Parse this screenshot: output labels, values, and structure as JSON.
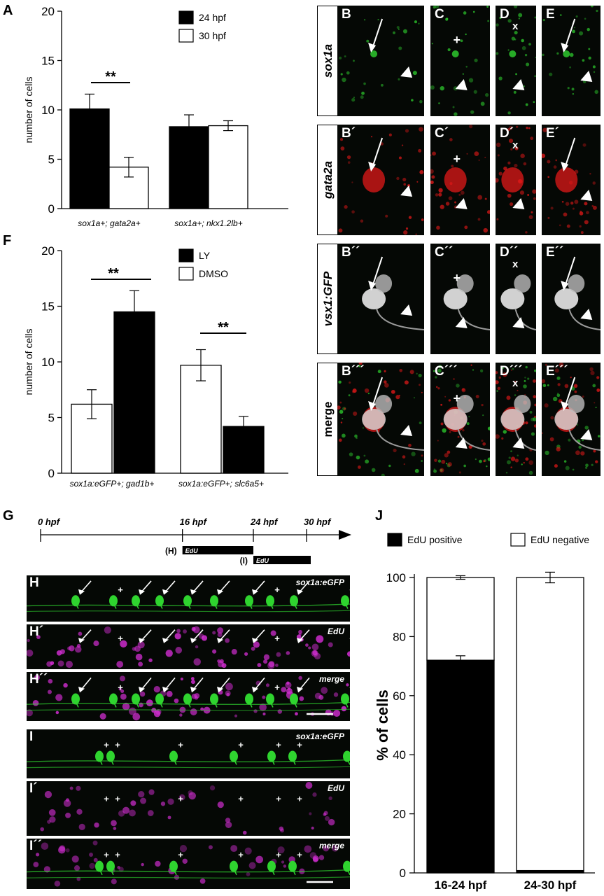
{
  "panel_letters": {
    "A": "A",
    "F": "F",
    "G": "G",
    "J": "J",
    "B": "B",
    "C": "C",
    "D": "D",
    "E": "E",
    "B1": "B´",
    "C1": "C´",
    "D1": "D´",
    "E1": "E´",
    "B2": "B´´",
    "C2": "C´´",
    "D2": "D´´",
    "E2": "E´´",
    "B3": "B´´´",
    "C3": "C´´´",
    "D3": "D´´´",
    "E3": "E´´´",
    "H": "H",
    "H1": "H´",
    "H2": "H´´",
    "I": "I",
    "I1": "I´",
    "I2": "I´´"
  },
  "row_labels": [
    "sox1a",
    "gata2a",
    "vsx1:GFP",
    "merge"
  ],
  "micro_marks": {
    "plus": "+",
    "x": "x"
  },
  "strip_labels": {
    "gfp": "sox1a:eGFP",
    "edu": "EdU",
    "merge": "merge"
  },
  "colors": {
    "green": "#2fd42f",
    "red": "#e01818",
    "magenta": "#d62ed6",
    "black": "#000000",
    "white": "#ffffff"
  },
  "chart_A": {
    "type": "bar",
    "ylabel": "number of cells",
    "ylim": [
      0,
      20
    ],
    "yticks": [
      0,
      5,
      10,
      15,
      20
    ],
    "categories": [
      "sox1a+; gata2a+",
      "sox1a+; nkx1.2lb+"
    ],
    "series": [
      {
        "name": "24 hpf",
        "color": "#000000",
        "values": [
          10.1,
          8.3
        ],
        "errors": [
          1.5,
          1.2
        ]
      },
      {
        "name": "30 hpf",
        "color": "#ffffff",
        "values": [
          4.2,
          8.4
        ],
        "errors": [
          1.0,
          0.5
        ]
      }
    ],
    "significance": "**",
    "legend_position": "top-right"
  },
  "chart_F": {
    "type": "bar",
    "ylabel": "number of cells",
    "ylim": [
      0,
      20
    ],
    "yticks": [
      0,
      5,
      10,
      15,
      20
    ],
    "categories": [
      "sox1a:eGFP+; gad1b+",
      "sox1a:eGFP+; slc6a5+"
    ],
    "legend": [
      {
        "name": "LY",
        "color": "#000000"
      },
      {
        "name": "DMSO",
        "color": "#ffffff"
      }
    ],
    "bars": [
      {
        "group": 0,
        "name": "DMSO",
        "color": "#ffffff",
        "value": 6.2,
        "error": 1.3
      },
      {
        "group": 0,
        "name": "LY",
        "color": "#000000",
        "value": 14.5,
        "error": 1.9
      },
      {
        "group": 1,
        "name": "DMSO",
        "color": "#ffffff",
        "value": 9.7,
        "error": 1.4
      },
      {
        "group": 1,
        "name": "LY",
        "color": "#000000",
        "value": 4.2,
        "error": 0.9
      }
    ],
    "significance": "**",
    "legend_position": "top-right"
  },
  "timeline_G": {
    "ticks": [
      "0 hpf",
      "16 hpf",
      "24 hpf",
      "30 hpf"
    ],
    "windows": [
      {
        "label": "(H)",
        "tag": "EdU",
        "start": 16,
        "end": 24
      },
      {
        "label": "(I)",
        "tag": "EdU",
        "start": 24,
        "end": 30
      }
    ]
  },
  "chart_J": {
    "type": "bar",
    "stacked": true,
    "ylabel": "% of cells",
    "ylim": [
      0,
      100
    ],
    "yticks": [
      0,
      20,
      40,
      60,
      80,
      100
    ],
    "categories": [
      "16-24 hpf",
      "24-30 hpf"
    ],
    "series": [
      {
        "name": "EdU positive",
        "color": "#000000",
        "values": [
          72,
          0.8
        ],
        "errors": [
          1.5,
          0
        ]
      },
      {
        "name": "EdU negative",
        "color": "#ffffff",
        "values": [
          28,
          99.2
        ],
        "errors": [
          0.6,
          1.8
        ]
      }
    ],
    "legend_position": "top"
  }
}
